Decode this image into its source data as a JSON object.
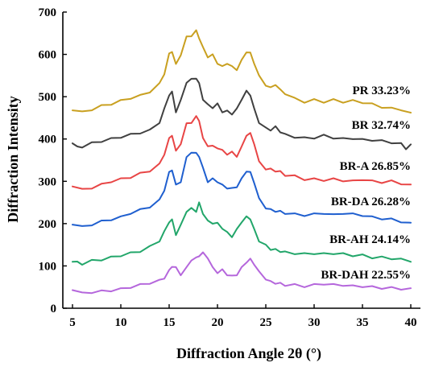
{
  "chart_data": {
    "type": "line",
    "xlabel": "Diffraction Angle 2θ (°)",
    "ylabel": "Diffraction Intensity",
    "xlim": [
      4,
      41
    ],
    "ylim": [
      0,
      700
    ],
    "xticks": [
      5,
      10,
      15,
      20,
      25,
      30,
      35,
      40
    ],
    "yticks": [
      0,
      100,
      200,
      300,
      400,
      500,
      600,
      700
    ],
    "series": [
      {
        "name": "PR 33.23%",
        "color": "#c9a020",
        "x": [
          5,
          6,
          7,
          8,
          9,
          10,
          11,
          12,
          13,
          14,
          14.5,
          15,
          15.3,
          15.7,
          16.2,
          16.8,
          17.3,
          17.8,
          18.1,
          18.5,
          19,
          19.5,
          20,
          20.5,
          21,
          21.5,
          22,
          22.5,
          23,
          23.4,
          23.8,
          24.3,
          25,
          25.5,
          26,
          26.5,
          27,
          28,
          29,
          30,
          31,
          32,
          33,
          34,
          35,
          36,
          37,
          38,
          39,
          40
        ],
        "values": [
          470,
          463,
          470,
          478,
          483,
          490,
          497,
          502,
          512,
          530,
          555,
          600,
          608,
          575,
          600,
          640,
          645,
          655,
          640,
          615,
          595,
          598,
          580,
          570,
          580,
          570,
          565,
          585,
          607,
          602,
          580,
          548,
          528,
          520,
          530,
          515,
          508,
          495,
          488,
          492,
          488,
          492,
          488,
          490,
          487,
          482,
          476,
          472,
          470,
          460
        ]
      },
      {
        "name": "BR 32.74%",
        "color": "#404040",
        "x": [
          5,
          5.5,
          6,
          7,
          8,
          9,
          10,
          11,
          12,
          13,
          14,
          14.5,
          15,
          15.3,
          15.7,
          16.2,
          16.8,
          17.3,
          17.8,
          18.1,
          18.5,
          19,
          19.5,
          20,
          20.5,
          21,
          21.5,
          22,
          22.5,
          23,
          23.4,
          23.8,
          24.3,
          25,
          25.5,
          26,
          26.5,
          27,
          28,
          29,
          30,
          31,
          32,
          33,
          34,
          35,
          36,
          37,
          38,
          39,
          39.5,
          40
        ],
        "values": [
          392,
          380,
          382,
          390,
          395,
          400,
          405,
          410,
          415,
          420,
          440,
          470,
          505,
          510,
          465,
          490,
          535,
          540,
          545,
          530,
          495,
          480,
          475,
          482,
          465,
          465,
          460,
          470,
          495,
          512,
          505,
          470,
          440,
          425,
          422,
          428,
          418,
          410,
          405,
          402,
          403,
          408,
          403,
          400,
          402,
          398,
          398,
          395,
          392,
          388,
          378,
          385
        ]
      },
      {
        "name": "BR-A 26.85%",
        "color": "#e84545",
        "x": [
          5,
          6,
          7,
          8,
          9,
          10,
          11,
          12,
          13,
          14,
          14.5,
          15,
          15.3,
          15.7,
          16.2,
          16.8,
          17.3,
          17.8,
          18.1,
          18.5,
          19,
          19.5,
          20,
          20.5,
          21,
          21.5,
          22,
          22.5,
          23,
          23.4,
          23.8,
          24.3,
          25,
          25.5,
          26,
          26.5,
          27,
          28,
          29,
          30,
          31,
          32,
          33,
          34,
          35,
          36,
          37,
          38,
          39,
          40
        ],
        "values": [
          290,
          280,
          285,
          292,
          300,
          305,
          310,
          318,
          325,
          340,
          365,
          400,
          410,
          370,
          390,
          435,
          440,
          452,
          445,
          400,
          385,
          382,
          380,
          372,
          365,
          368,
          360,
          380,
          410,
          412,
          390,
          345,
          330,
          328,
          325,
          322,
          315,
          312,
          305,
          305,
          303,
          305,
          302,
          300,
          305,
          300,
          298,
          300,
          295,
          290
        ]
      },
      {
        "name": "BR-DA 26.28%",
        "color": "#1f5fcf",
        "x": [
          5,
          6,
          7,
          8,
          9,
          10,
          11,
          12,
          13,
          14,
          14.5,
          15,
          15.3,
          15.7,
          16.2,
          16.8,
          17.3,
          17.8,
          18.1,
          18.5,
          19,
          19.5,
          20,
          20.5,
          21,
          21.5,
          22,
          22.5,
          23,
          23.4,
          23.8,
          24.3,
          25,
          25.5,
          26,
          26.5,
          27,
          28,
          29,
          30,
          31,
          32,
          33,
          34,
          35,
          36,
          37,
          38,
          39,
          40
        ],
        "values": [
          200,
          192,
          198,
          205,
          210,
          215,
          225,
          232,
          240,
          255,
          280,
          320,
          328,
          290,
          300,
          355,
          370,
          365,
          360,
          330,
          300,
          305,
          300,
          290,
          285,
          282,
          288,
          305,
          325,
          320,
          298,
          258,
          238,
          232,
          230,
          228,
          225,
          222,
          220,
          222,
          225,
          220,
          225,
          222,
          220,
          215,
          212,
          210,
          205,
          200
        ]
      },
      {
        "name": "BR-AH 24.14%",
        "color": "#22a66a",
        "x": [
          5,
          5.5,
          6,
          7,
          8,
          9,
          10,
          11,
          12,
          13,
          14,
          14.5,
          15,
          15.3,
          15.7,
          16.2,
          16.8,
          17.3,
          17.8,
          18.1,
          18.5,
          19,
          19.5,
          20,
          20.5,
          21,
          21.5,
          22,
          22.5,
          23,
          23.4,
          23.8,
          24.3,
          25,
          25.5,
          26,
          26.5,
          27,
          28,
          29,
          30,
          31,
          32,
          33,
          34,
          35,
          36,
          37,
          38,
          39,
          40
        ],
        "values": [
          112,
          108,
          105,
          112,
          115,
          120,
          125,
          130,
          135,
          145,
          160,
          180,
          205,
          208,
          175,
          195,
          230,
          235,
          230,
          248,
          225,
          205,
          202,
          200,
          190,
          178,
          170,
          185,
          205,
          215,
          212,
          185,
          160,
          148,
          140,
          138,
          135,
          132,
          130,
          128,
          130,
          128,
          130,
          128,
          125,
          125,
          120,
          120,
          118,
          115,
          112
        ]
      },
      {
        "name": "BR-DAH 22.55%",
        "color": "#b567dc",
        "x": [
          5,
          6,
          7,
          8,
          9,
          10,
          11,
          12,
          13,
          14,
          14.5,
          15,
          15.3,
          15.7,
          16.2,
          16.8,
          17.3,
          17.8,
          18.1,
          18.5,
          19,
          19.5,
          20,
          20.5,
          21,
          21.5,
          22,
          22.5,
          23,
          23.4,
          23.8,
          24.3,
          25,
          25.5,
          26,
          26.5,
          27,
          28,
          29,
          30,
          31,
          32,
          33,
          34,
          35,
          36,
          37,
          38,
          39,
          40
        ],
        "values": [
          45,
          35,
          38,
          40,
          42,
          45,
          50,
          55,
          60,
          65,
          72,
          88,
          100,
          95,
          80,
          95,
          115,
          118,
          125,
          130,
          120,
          95,
          85,
          90,
          80,
          75,
          80,
          95,
          110,
          115,
          105,
          85,
          70,
          62,
          60,
          58,
          55,
          55,
          52,
          55,
          58,
          55,
          55,
          52,
          52,
          50,
          48,
          48,
          46,
          45
        ]
      }
    ]
  }
}
